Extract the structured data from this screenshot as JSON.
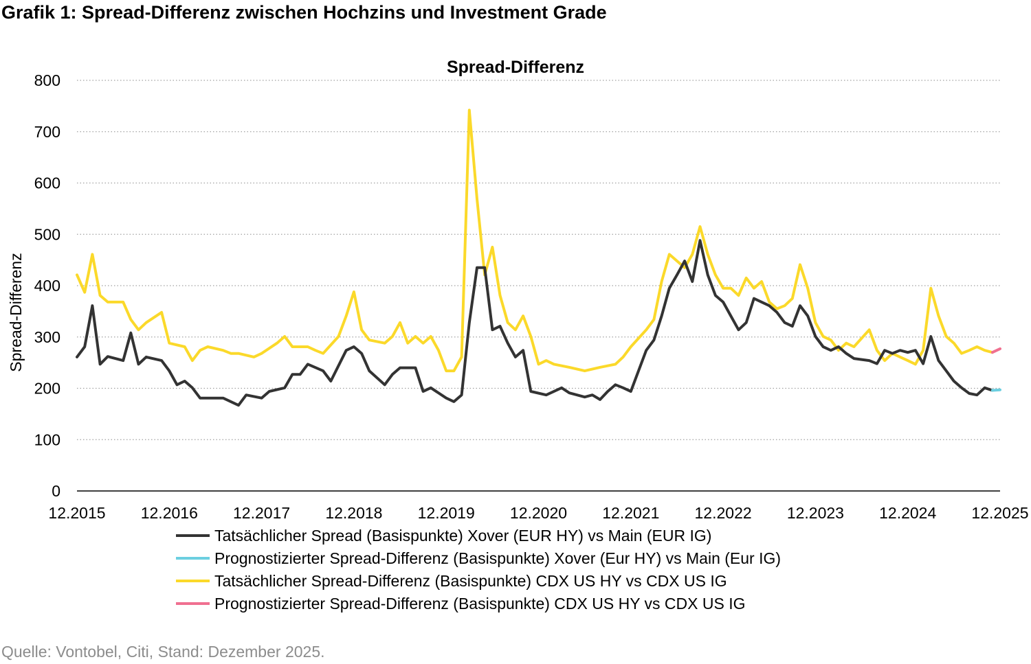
{
  "figure_title": "Grafik 1: Spread-Differenz zwischen Hochzins und Investment Grade",
  "source": "Quelle: Vontobel, Citi, Stand: Dezember 2025.",
  "chart_data": {
    "type": "line",
    "title": "Spread-Differenz",
    "xlabel": "",
    "ylabel": "Spread-Differenz",
    "ylim": [
      0,
      800
    ],
    "yticks": [
      "0",
      "100",
      "200",
      "300",
      "400",
      "500",
      "600",
      "700",
      "800"
    ],
    "xlim": [
      "12.2015",
      "12.2025"
    ],
    "xticks": [
      "12.2015",
      "12.2016",
      "12.2017",
      "12.2018",
      "12.2019",
      "12.2020",
      "12.2021",
      "12.2022",
      "12.2023",
      "12.2024",
      "12.2025"
    ],
    "grid": "horizontal dotted",
    "legend": "bottom",
    "series": [
      {
        "name": "Tatsächlicher Spread (Basispunkte) Xover (EUR HY) vs Main (EUR IG)",
        "color": "#333333",
        "points": [
          [
            "12.2015",
            261
          ],
          [
            "01.2016",
            281
          ],
          [
            "02.2016",
            361
          ],
          [
            "03.2016",
            247
          ],
          [
            "04.2016",
            262
          ],
          [
            "06.2016",
            254
          ],
          [
            "07.2016",
            308
          ],
          [
            "08.2016",
            247
          ],
          [
            "09.2016",
            261
          ],
          [
            "11.2016",
            254
          ],
          [
            "12.2016",
            234
          ],
          [
            "01.2017",
            207
          ],
          [
            "02.2017",
            214
          ],
          [
            "03.2017",
            201
          ],
          [
            "04.2017",
            181
          ],
          [
            "07.2017",
            181
          ],
          [
            "08.2017",
            174
          ],
          [
            "09.2017",
            167
          ],
          [
            "10.2017",
            187
          ],
          [
            "12.2017",
            181
          ],
          [
            "01.2018",
            194
          ],
          [
            "03.2018",
            201
          ],
          [
            "04.2018",
            227
          ],
          [
            "05.2018",
            227
          ],
          [
            "06.2018",
            247
          ],
          [
            "08.2018",
            234
          ],
          [
            "09.2018",
            214
          ],
          [
            "11.2018",
            274
          ],
          [
            "12.2018",
            281
          ],
          [
            "01.2019",
            268
          ],
          [
            "02.2019",
            234
          ],
          [
            "04.2019",
            207
          ],
          [
            "05.2019",
            227
          ],
          [
            "06.2019",
            240
          ],
          [
            "08.2019",
            240
          ],
          [
            "09.2019",
            194
          ],
          [
            "10.2019",
            201
          ],
          [
            "12.2019",
            181
          ],
          [
            "01.2020",
            174
          ],
          [
            "02.2020",
            187
          ],
          [
            "03.2020",
            328
          ],
          [
            "04.2020",
            435
          ],
          [
            "05.2020",
            435
          ],
          [
            "06.2020",
            314
          ],
          [
            "07.2020",
            321
          ],
          [
            "08.2020",
            288
          ],
          [
            "09.2020",
            261
          ],
          [
            "10.2020",
            274
          ],
          [
            "11.2020",
            194
          ],
          [
            "01.2021",
            187
          ],
          [
            "03.2021",
            201
          ],
          [
            "04.2021",
            191
          ],
          [
            "06.2021",
            183
          ],
          [
            "07.2021",
            187
          ],
          [
            "08.2021",
            178
          ],
          [
            "09.2021",
            194
          ],
          [
            "10.2021",
            207
          ],
          [
            "11.2021",
            201
          ],
          [
            "12.2021",
            194
          ],
          [
            "01.2022",
            234
          ],
          [
            "02.2022",
            274
          ],
          [
            "03.2022",
            294
          ],
          [
            "04.2022",
            341
          ],
          [
            "05.2022",
            395
          ],
          [
            "06.2022",
            421
          ],
          [
            "07.2022",
            448
          ],
          [
            "08.2022",
            408
          ],
          [
            "09.2022",
            488
          ],
          [
            "10.2022",
            421
          ],
          [
            "11.2022",
            381
          ],
          [
            "12.2022",
            368
          ],
          [
            "01.2023",
            341
          ],
          [
            "02.2023",
            314
          ],
          [
            "03.2023",
            328
          ],
          [
            "04.2023",
            375
          ],
          [
            "05.2023",
            368
          ],
          [
            "06.2023",
            361
          ],
          [
            "07.2023",
            348
          ],
          [
            "08.2023",
            328
          ],
          [
            "09.2023",
            321
          ],
          [
            "10.2023",
            361
          ],
          [
            "11.2023",
            341
          ],
          [
            "12.2023",
            301
          ],
          [
            "01.2024",
            281
          ],
          [
            "02.2024",
            274
          ],
          [
            "03.2024",
            281
          ],
          [
            "04.2024",
            268
          ],
          [
            "05.2024",
            258
          ],
          [
            "07.2024",
            254
          ],
          [
            "08.2024",
            248
          ],
          [
            "09.2024",
            274
          ],
          [
            "10.2024",
            268
          ],
          [
            "11.2024",
            274
          ],
          [
            "12.2024",
            270
          ],
          [
            "01.2025",
            274
          ],
          [
            "02.2025",
            248
          ],
          [
            "03.2025",
            301
          ],
          [
            "04.2025",
            254
          ],
          [
            "05.2025",
            234
          ],
          [
            "06.2025",
            214
          ],
          [
            "07.2025",
            201
          ],
          [
            "08.2025",
            190
          ],
          [
            "09.2025",
            187
          ],
          [
            "10.2025",
            201
          ],
          [
            "11.2025",
            196
          ]
        ]
      },
      {
        "name": "Prognostizierter Spread-Differenz (Basispunkte) Xover (Eur HY) vs Main (Eur IG)",
        "color": "#6ccfe0",
        "points": [
          [
            "11.2025",
            196
          ],
          [
            "12.2025",
            197
          ]
        ]
      },
      {
        "name": "Tatsächlicher Spread-Differenz (Basispunkte) CDX US HY vs CDX US IG",
        "color": "#fbd92a",
        "points": [
          [
            "12.2015",
            421
          ],
          [
            "01.2016",
            387
          ],
          [
            "02.2016",
            461
          ],
          [
            "03.2016",
            381
          ],
          [
            "04.2016",
            368
          ],
          [
            "06.2016",
            368
          ],
          [
            "07.2016",
            334
          ],
          [
            "08.2016",
            314
          ],
          [
            "09.2016",
            328
          ],
          [
            "11.2016",
            348
          ],
          [
            "12.2016",
            288
          ],
          [
            "02.2017",
            281
          ],
          [
            "03.2017",
            254
          ],
          [
            "04.2017",
            274
          ],
          [
            "05.2017",
            281
          ],
          [
            "07.2017",
            274
          ],
          [
            "08.2017",
            268
          ],
          [
            "09.2017",
            268
          ],
          [
            "11.2017",
            261
          ],
          [
            "12.2017",
            268
          ],
          [
            "02.2018",
            288
          ],
          [
            "03.2018",
            301
          ],
          [
            "04.2018",
            281
          ],
          [
            "06.2018",
            281
          ],
          [
            "07.2018",
            274
          ],
          [
            "08.2018",
            268
          ],
          [
            "10.2018",
            301
          ],
          [
            "11.2018",
            341
          ],
          [
            "12.2018",
            388
          ],
          [
            "01.2019",
            314
          ],
          [
            "02.2019",
            294
          ],
          [
            "04.2019",
            288
          ],
          [
            "05.2019",
            301
          ],
          [
            "06.2019",
            328
          ],
          [
            "07.2019",
            288
          ],
          [
            "08.2019",
            301
          ],
          [
            "09.2019",
            288
          ],
          [
            "10.2019",
            301
          ],
          [
            "11.2019",
            274
          ],
          [
            "12.2019",
            234
          ],
          [
            "01.2020",
            234
          ],
          [
            "02.2020",
            261
          ],
          [
            "03.2020",
            742
          ],
          [
            "04.2020",
            569
          ],
          [
            "05.2020",
            421
          ],
          [
            "06.2020",
            475
          ],
          [
            "07.2020",
            381
          ],
          [
            "08.2020",
            328
          ],
          [
            "09.2020",
            314
          ],
          [
            "10.2020",
            341
          ],
          [
            "11.2020",
            301
          ],
          [
            "12.2020",
            247
          ],
          [
            "01.2021",
            254
          ],
          [
            "02.2021",
            247
          ],
          [
            "04.2021",
            241
          ],
          [
            "06.2021",
            234
          ],
          [
            "08.2021",
            241
          ],
          [
            "10.2021",
            247
          ],
          [
            "11.2021",
            261
          ],
          [
            "12.2021",
            281
          ],
          [
            "02.2022",
            314
          ],
          [
            "03.2022",
            334
          ],
          [
            "04.2022",
            408
          ],
          [
            "05.2022",
            461
          ],
          [
            "06.2022",
            448
          ],
          [
            "07.2022",
            435
          ],
          [
            "08.2022",
            461
          ],
          [
            "09.2022",
            515
          ],
          [
            "10.2022",
            461
          ],
          [
            "11.2022",
            421
          ],
          [
            "12.2022",
            395
          ],
          [
            "01.2023",
            395
          ],
          [
            "02.2023",
            381
          ],
          [
            "03.2023",
            415
          ],
          [
            "04.2023",
            395
          ],
          [
            "05.2023",
            408
          ],
          [
            "06.2023",
            368
          ],
          [
            "07.2023",
            355
          ],
          [
            "08.2023",
            361
          ],
          [
            "09.2023",
            375
          ],
          [
            "10.2023",
            441
          ],
          [
            "11.2023",
            395
          ],
          [
            "12.2023",
            328
          ],
          [
            "01.2024",
            301
          ],
          [
            "02.2024",
            294
          ],
          [
            "03.2024",
            274
          ],
          [
            "04.2024",
            288
          ],
          [
            "05.2024",
            281
          ],
          [
            "07.2024",
            314
          ],
          [
            "08.2024",
            274
          ],
          [
            "09.2024",
            254
          ],
          [
            "10.2024",
            268
          ],
          [
            "11.2024",
            261
          ],
          [
            "12.2024",
            254
          ],
          [
            "01.2025",
            247
          ],
          [
            "02.2025",
            274
          ],
          [
            "03.2025",
            395
          ],
          [
            "04.2025",
            341
          ],
          [
            "05.2025",
            301
          ],
          [
            "06.2025",
            288
          ],
          [
            "07.2025",
            268
          ],
          [
            "08.2025",
            274
          ],
          [
            "09.2025",
            281
          ],
          [
            "10.2025",
            274
          ],
          [
            "11.2025",
            270
          ]
        ]
      },
      {
        "name": "Prognostizierter Spread-Differenz (Basispunkte) CDX US HY vs CDX US IG",
        "color": "#f07090",
        "points": [
          [
            "11.2025",
            270
          ],
          [
            "12.2025",
            277
          ]
        ]
      }
    ]
  }
}
